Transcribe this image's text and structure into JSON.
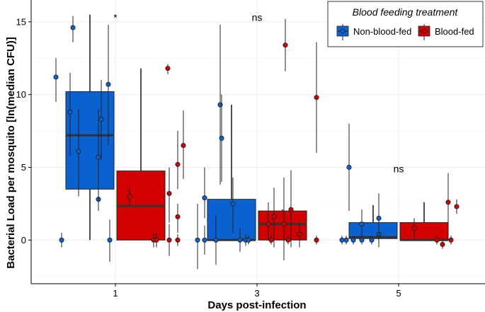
{
  "chart_data": {
    "type": "boxplot",
    "xlabel": "Days post-infection",
    "ylabel": "Bacterial Load per mosquito [ln(median CFU)]",
    "categories": [
      "1",
      "3",
      "5"
    ],
    "ylim": [
      -3.0,
      16.5
    ],
    "yticks": [
      0,
      5,
      10,
      15
    ],
    "legend": {
      "title": "Blood feeding treatment",
      "position": "top-right",
      "entries": [
        "Non-blood-fed",
        "Blood-fed"
      ]
    },
    "colors": {
      "Non-blood-fed": "#0a62d0",
      "Blood-fed": "#d20000",
      "grid": "#ebebeb",
      "median": "#333333"
    },
    "annotations": [
      {
        "category": "1",
        "text": "*",
        "y": 15.3
      },
      {
        "category": "3",
        "text": "ns",
        "y": 15.3
      },
      {
        "category": "5",
        "text": "ns",
        "y": 4.9
      }
    ],
    "series": [
      {
        "name": "Non-blood-fed",
        "boxes": [
          {
            "category": "1",
            "q1": 3.5,
            "median": 7.2,
            "q3": 10.2,
            "whisker_low": 0,
            "whisker_high": 15.5
          },
          {
            "category": "3",
            "q1": 0,
            "median": 0,
            "q3": 2.8,
            "whisker_low": 0,
            "whisker_high": 9.3
          },
          {
            "category": "5",
            "q1": 0.1,
            "median": 0.2,
            "q3": 1.2,
            "whisker_low": 0,
            "whisker_high": 2.4
          }
        ],
        "points": [
          {
            "category": "1",
            "jitter": -0.42,
            "y": 11.2,
            "lo": 9.5,
            "hi": 12.5
          },
          {
            "category": "1",
            "jitter": -0.38,
            "y": 0,
            "lo": -0.5,
            "hi": 0.5
          },
          {
            "category": "1",
            "jitter": -0.3,
            "y": 14.6,
            "lo": 13.6,
            "hi": 15.4
          },
          {
            "category": "1",
            "jitter": -0.32,
            "y": 8.8,
            "lo": 5.8,
            "hi": 11.5
          },
          {
            "category": "1",
            "jitter": -0.26,
            "y": 6.1,
            "lo": 3.0,
            "hi": 9.0
          },
          {
            "category": "1",
            "jitter": -0.1,
            "y": 8.3,
            "lo": 5.5,
            "hi": 11.0
          },
          {
            "category": "1",
            "jitter": -0.12,
            "y": 2.8,
            "lo": 2.0,
            "hi": 3.5
          },
          {
            "category": "1",
            "jitter": -0.12,
            "y": 5.7,
            "lo": 2.5,
            "hi": 9.0
          },
          {
            "category": "1",
            "jitter": -0.05,
            "y": 10.7,
            "lo": 6.5,
            "hi": 14.8
          },
          {
            "category": "1",
            "jitter": -0.04,
            "y": 0,
            "lo": -1.5,
            "hi": 1.4
          },
          {
            "category": "3",
            "jitter": -0.42,
            "y": 0,
            "lo": -2.0,
            "hi": 2.5
          },
          {
            "category": "3",
            "jitter": -0.37,
            "y": 0,
            "lo": -1.0,
            "hi": 1.0
          },
          {
            "category": "3",
            "jitter": -0.37,
            "y": 2.9,
            "lo": 1.5,
            "hi": 5.0
          },
          {
            "category": "3",
            "jitter": -0.29,
            "y": 0,
            "lo": -1.7,
            "hi": 1.7
          },
          {
            "category": "3",
            "jitter": -0.26,
            "y": 9.3,
            "lo": 3.8,
            "hi": 14.8
          },
          {
            "category": "3",
            "jitter": -0.25,
            "y": 7.0,
            "lo": 4.0,
            "hi": 10.0
          },
          {
            "category": "3",
            "jitter": -0.17,
            "y": 2.5,
            "lo": 0.5,
            "hi": 4.3
          },
          {
            "category": "3",
            "jitter": -0.12,
            "y": 0,
            "lo": -0.8,
            "hi": 0.8
          },
          {
            "category": "3",
            "jitter": -0.08,
            "y": 0,
            "lo": -0.4,
            "hi": 0.4
          },
          {
            "category": "3",
            "jitter": -0.06,
            "y": 0,
            "lo": -0.3,
            "hi": 0.3
          },
          {
            "category": "5",
            "jitter": -0.35,
            "y": 5.0,
            "lo": 2.0,
            "hi": 8.0
          },
          {
            "category": "5",
            "jitter": -0.4,
            "y": 0,
            "lo": -0.3,
            "hi": 0.3
          },
          {
            "category": "5",
            "jitter": -0.37,
            "y": 0,
            "lo": -0.3,
            "hi": 0.3
          },
          {
            "category": "5",
            "jitter": -0.26,
            "y": 1.1,
            "lo": 0.1,
            "hi": 2.1
          },
          {
            "category": "5",
            "jitter": -0.26,
            "y": 0,
            "lo": -0.3,
            "hi": 0.3
          },
          {
            "category": "5",
            "jitter": -0.32,
            "y": 0,
            "lo": -0.3,
            "hi": 0.3
          },
          {
            "category": "5",
            "jitter": -0.14,
            "y": 0.4,
            "lo": -0.5,
            "hi": 1.4
          },
          {
            "category": "5",
            "jitter": -0.14,
            "y": 1.5,
            "lo": 0.1,
            "hi": 3.2
          },
          {
            "category": "5",
            "jitter": -0.19,
            "y": 0,
            "lo": -0.3,
            "hi": 0.3
          }
        ]
      },
      {
        "name": "Blood-fed",
        "boxes": [
          {
            "category": "1",
            "q1": 0,
            "median": 2.35,
            "q3": 4.75,
            "whisker_low": 0,
            "whisker_high": 11.8
          },
          {
            "category": "3",
            "q1": 0,
            "median": 1.1,
            "q3": 2.0,
            "whisker_low": 0,
            "whisker_high": 2.1
          },
          {
            "category": "5",
            "q1": 0,
            "median": 0,
            "q3": 1.2,
            "whisker_low": 0,
            "whisker_high": 2.6
          }
        ],
        "points": [
          {
            "category": "1",
            "jitter": 0.1,
            "y": 3.0,
            "lo": 2.4,
            "hi": 3.6
          },
          {
            "category": "1",
            "jitter": 0.37,
            "y": 11.8,
            "lo": 11.4,
            "hi": 12.1
          },
          {
            "category": "1",
            "jitter": 0.48,
            "y": 6.5,
            "lo": 4.2,
            "hi": 8.9
          },
          {
            "category": "1",
            "jitter": 0.44,
            "y": 5.2,
            "lo": 3.5,
            "hi": 7.5
          },
          {
            "category": "1",
            "jitter": 0.38,
            "y": 3.2,
            "lo": 1.2,
            "hi": 5.0
          },
          {
            "category": "1",
            "jitter": 0.44,
            "y": 1.6,
            "lo": 0.5,
            "hi": 2.5
          },
          {
            "category": "1",
            "jitter": 0.27,
            "y": 0,
            "lo": -0.5,
            "hi": 0.5
          },
          {
            "category": "1",
            "jitter": 0.29,
            "y": 0,
            "lo": -0.5,
            "hi": 0.5
          },
          {
            "category": "1",
            "jitter": 0.38,
            "y": 0,
            "lo": -1.1,
            "hi": 1.1
          },
          {
            "category": "1",
            "jitter": 0.44,
            "y": 0,
            "lo": -0.4,
            "hi": 0.4
          },
          {
            "category": "3",
            "jitter": 0.08,
            "y": 1.1,
            "lo": 0,
            "hi": 2.6
          },
          {
            "category": "3",
            "jitter": 0.1,
            "y": 0,
            "lo": -0.3,
            "hi": 0.3
          },
          {
            "category": "3",
            "jitter": 0.12,
            "y": 1.6,
            "lo": -0.5,
            "hi": 3.6
          },
          {
            "category": "3",
            "jitter": 0.19,
            "y": 1.1,
            "lo": -1.4,
            "hi": 4.3
          },
          {
            "category": "3",
            "jitter": 0.2,
            "y": 13.4,
            "lo": 11.6,
            "hi": 15.2
          },
          {
            "category": "3",
            "jitter": 0.24,
            "y": 2.1,
            "lo": -0.5,
            "hi": 4.8
          },
          {
            "category": "3",
            "jitter": 0.3,
            "y": 0.4,
            "lo": -0.5,
            "hi": 1.3
          },
          {
            "category": "3",
            "jitter": 0.42,
            "y": 9.8,
            "lo": 6.0,
            "hi": 13.6
          },
          {
            "category": "3",
            "jitter": 0.42,
            "y": 0,
            "lo": -0.3,
            "hi": 0.3
          },
          {
            "category": "3",
            "jitter": 0.22,
            "y": 0,
            "lo": -0.3,
            "hi": 0.3
          },
          {
            "category": "5",
            "jitter": 0.11,
            "y": 0.8,
            "lo": 0.1,
            "hi": 1.5
          },
          {
            "category": "5",
            "jitter": 0.27,
            "y": 0,
            "lo": -0.3,
            "hi": 0.3
          },
          {
            "category": "5",
            "jitter": 0.31,
            "y": -0.3,
            "lo": -0.6,
            "hi": 0
          },
          {
            "category": "5",
            "jitter": 0.35,
            "y": 2.6,
            "lo": 0.6,
            "hi": 4.6
          },
          {
            "category": "5",
            "jitter": 0.41,
            "y": 2.3,
            "lo": 1.8,
            "hi": 2.8
          },
          {
            "category": "5",
            "jitter": 0.37,
            "y": 0,
            "lo": -0.3,
            "hi": 0.3
          }
        ]
      }
    ]
  }
}
